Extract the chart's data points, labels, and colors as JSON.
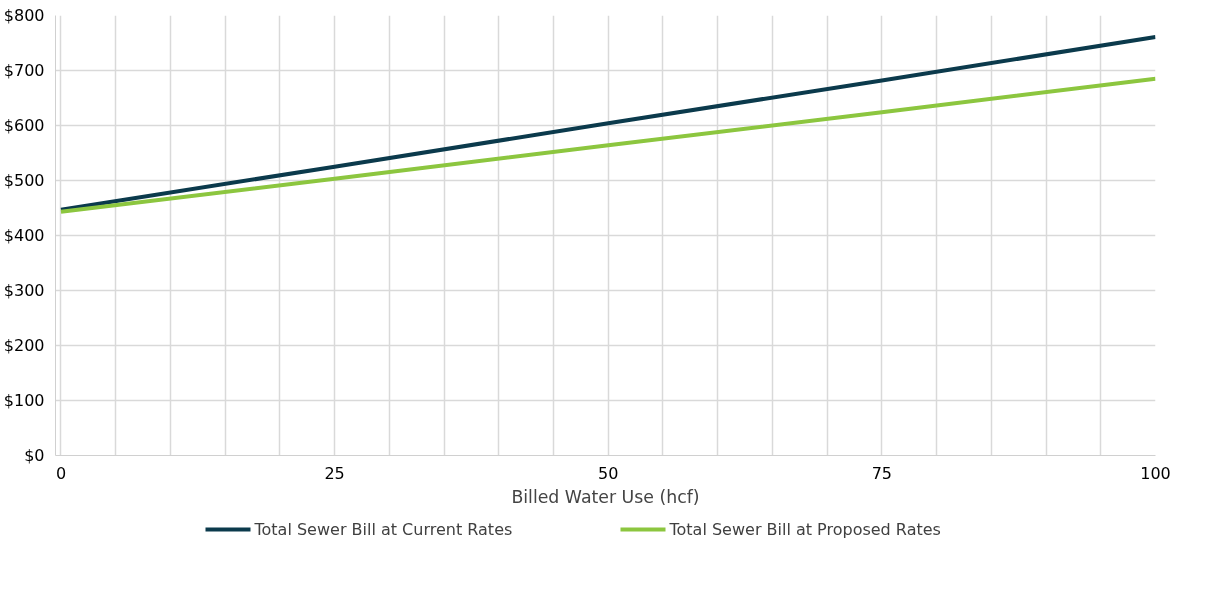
{
  "chart_data": {
    "type": "line",
    "xlabel": "Billed Water Use (hcf)",
    "x": [
      0,
      25,
      50,
      75,
      100
    ],
    "series": [
      {
        "name": "Total Sewer Bill at Current Rates",
        "color": "#0b3a4c",
        "values": [
          447,
          525,
          604,
          682,
          761
        ]
      },
      {
        "name": "Total Sewer Bill at Proposed Rates",
        "color": "#8cc63f",
        "values": [
          443,
          503,
          564,
          624,
          685
        ]
      }
    ],
    "xlim": [
      -0.5,
      100
    ],
    "xticks": [
      0,
      {
        "value": 5,
        "label": null
      },
      {
        "value": 10,
        "label": null
      },
      {
        "value": 15,
        "label": null
      },
      {
        "value": 20,
        "label": null
      },
      25,
      {
        "value": 30,
        "label": null
      },
      {
        "value": 35,
        "label": null
      },
      {
        "value": 40,
        "label": null
      },
      {
        "value": 45,
        "label": null
      },
      50,
      {
        "value": 55,
        "label": null
      },
      {
        "value": 60,
        "label": null
      },
      {
        "value": 65,
        "label": null
      },
      {
        "value": 70,
        "label": null
      },
      75,
      {
        "value": 80,
        "label": null
      },
      {
        "value": 85,
        "label": null
      },
      {
        "value": 90,
        "label": null
      },
      {
        "value": 95,
        "label": null
      },
      100
    ],
    "ylim": [
      0,
      800
    ],
    "yticks": [
      {
        "value": 0,
        "label": "$0"
      },
      {
        "value": 100,
        "label": "$100"
      },
      {
        "value": 200,
        "label": "$200"
      },
      {
        "value": 300,
        "label": "$300"
      },
      {
        "value": 400,
        "label": "$400"
      },
      {
        "value": 500,
        "label": "$500"
      },
      {
        "value": 600,
        "label": "$600"
      },
      {
        "value": 700,
        "label": "$700"
      },
      {
        "value": 800,
        "label": "$800"
      }
    ],
    "grid": true,
    "legend": "bottom",
    "marker": "none",
    "line_style": "solid"
  }
}
